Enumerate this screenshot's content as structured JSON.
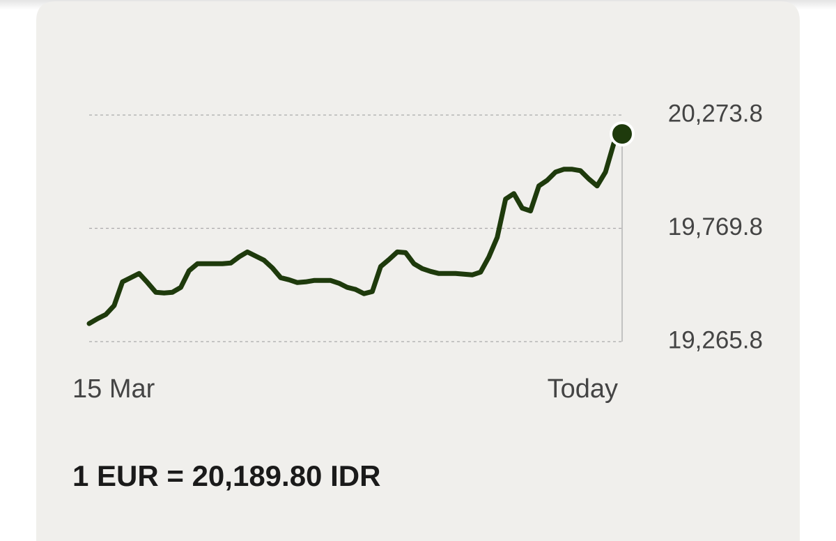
{
  "chart_data": {
    "type": "line",
    "categories": [
      "15 Mar",
      null,
      null,
      null,
      null,
      null,
      null,
      null,
      null,
      null,
      null,
      null,
      null,
      null,
      null,
      null,
      null,
      null,
      null,
      null,
      null,
      null,
      null,
      null,
      null,
      null,
      null,
      null,
      null,
      null,
      null,
      null,
      null,
      null,
      null,
      null,
      null,
      null,
      null,
      null,
      null,
      null,
      null,
      null,
      null,
      null,
      null,
      null,
      null,
      null,
      null,
      null,
      null,
      null,
      null,
      null,
      null,
      null,
      null,
      null,
      null,
      null,
      null,
      null,
      "Today"
    ],
    "series": [
      {
        "name": "EUR/IDR",
        "color": "#1e3a0c",
        "values": [
          19346.2,
          19367.8,
          19386.4,
          19426.6,
          19531.7,
          19550.3,
          19568.8,
          19528.6,
          19485.3,
          19482.2,
          19485.3,
          19507.0,
          19581.2,
          19612.1,
          19612.1,
          19612.1,
          19612.1,
          19615.2,
          19643.0,
          19664.7,
          19646.1,
          19627.6,
          19593.6,
          19550.3,
          19541.0,
          19528.6,
          19531.7,
          19537.9,
          19537.9,
          19537.9,
          19525.5,
          19507.0,
          19497.7,
          19479.1,
          19488.4,
          19599.7,
          19630.7,
          19664.7,
          19661.6,
          19612.1,
          19590.5,
          19578.1,
          19568.8,
          19568.8,
          19568.8,
          19565.7,
          19562.6,
          19575.0,
          19643.0,
          19729.6,
          19899.7,
          19924.4,
          19859.5,
          19847.1,
          19958.4,
          19983.1,
          20020.2,
          20032.6,
          20032.6,
          20026.4,
          19989.3,
          19958.4,
          20020.2,
          20147.0,
          20189.8
        ]
      }
    ],
    "ylim": [
      19265.8,
      20273.8
    ],
    "yticks": [
      {
        "value": 19265.8,
        "label": "19,265.8"
      },
      {
        "value": 19769.8,
        "label": "19,769.8"
      },
      {
        "value": 20273.8,
        "label": "20,273.8"
      }
    ],
    "grid": true,
    "annotation": "1 EUR = 20,189.80 IDR"
  }
}
